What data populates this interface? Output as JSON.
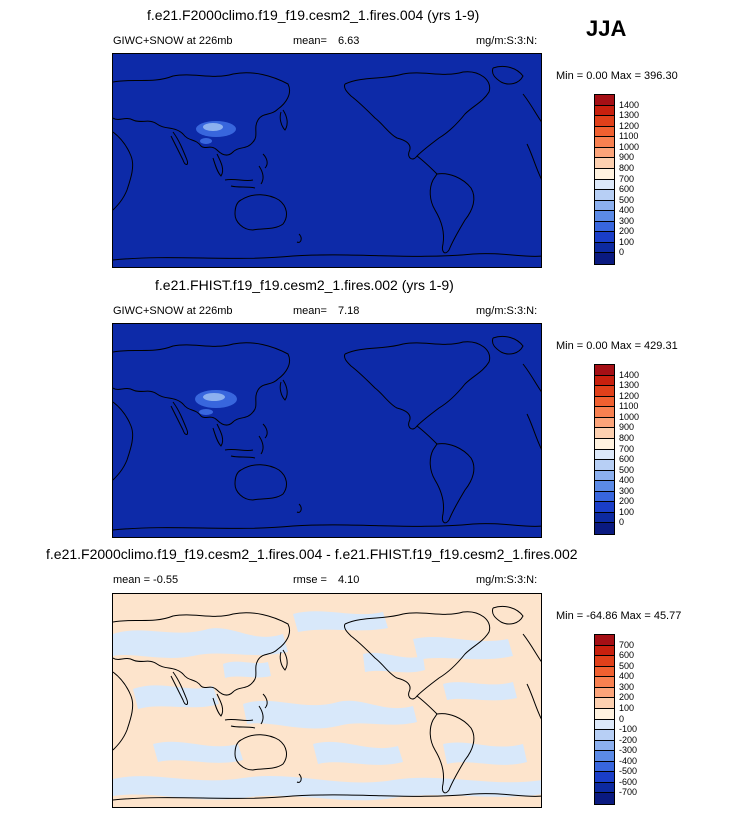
{
  "season": "JJA",
  "panels": [
    {
      "title": "f.e21.F2000climo.f19_f19.cesm2_1.fires.004 (yrs 1-9)",
      "left_label": "GIWC+SNOW at 226mb",
      "mean_label": "mean=",
      "mean_value": "6.63",
      "units": "mg/m:S:3:N:",
      "minmax": "Min =   0.00 Max = 396.30",
      "colorbar_labels": [
        "1400",
        "1300",
        "1200",
        "1100",
        "1000",
        "900",
        "800",
        "700",
        "600",
        "500",
        "400",
        "300",
        "200",
        "100",
        "0"
      ],
      "colorbar_colors": [
        "#a50f15",
        "#c8200e",
        "#e0401a",
        "#f06030",
        "#f88050",
        "#fca47a",
        "#fdd0b0",
        "#fff2e0",
        "#dde9fa",
        "#b7cff5",
        "#8cb0ef",
        "#5b8ae6",
        "#3866dd",
        "#1a3ec8",
        "#0d2aa0",
        "#0a1a80"
      ]
    },
    {
      "title": "f.e21.FHIST.f19_f19.cesm2_1.fires.002 (yrs 1-9)",
      "left_label": "GIWC+SNOW at 226mb",
      "mean_label": "mean=",
      "mean_value": "7.18",
      "units": "mg/m:S:3:N:",
      "minmax": "Min =   0.00 Max = 429.31",
      "colorbar_labels": [
        "1400",
        "1300",
        "1200",
        "1100",
        "1000",
        "900",
        "800",
        "700",
        "600",
        "500",
        "400",
        "300",
        "200",
        "100",
        "0"
      ],
      "colorbar_colors": [
        "#a50f15",
        "#c8200e",
        "#e0401a",
        "#f06030",
        "#f88050",
        "#fca47a",
        "#fdd0b0",
        "#fff2e0",
        "#dde9fa",
        "#b7cff5",
        "#8cb0ef",
        "#5b8ae6",
        "#3866dd",
        "#1a3ec8",
        "#0d2aa0",
        "#0a1a80"
      ]
    },
    {
      "title": "f.e21.F2000climo.f19_f19.cesm2_1.fires.004 - f.e21.FHIST.f19_f19.cesm2_1.fires.002",
      "left_label": "mean =  -0.55",
      "mean_label": "rmse =",
      "mean_value": "4.10",
      "units": "mg/m:S:3:N:",
      "minmax": "Min = -64.86 Max =  45.77",
      "colorbar_labels": [
        "700",
        "600",
        "500",
        "400",
        "300",
        "200",
        "100",
        "0",
        "-100",
        "-200",
        "-300",
        "-400",
        "-500",
        "-600",
        "-700"
      ],
      "colorbar_colors": [
        "#a50f15",
        "#c8200e",
        "#e0401a",
        "#f06030",
        "#f88050",
        "#fca47a",
        "#fdd0b0",
        "#fff2e0",
        "#dde9fa",
        "#b7cff5",
        "#8cb0ef",
        "#5b8ae6",
        "#3866dd",
        "#1a3ec8",
        "#0d2aa0",
        "#0a1a80"
      ]
    }
  ],
  "map_colors": {
    "field_blue": "#0d2aa8",
    "hotspot_1": "#3866dd",
    "hotspot_2": "#8cb0ef",
    "diff_pos": "#fde4cc",
    "diff_neg": "#d8e8fa",
    "coast": "#000000"
  }
}
